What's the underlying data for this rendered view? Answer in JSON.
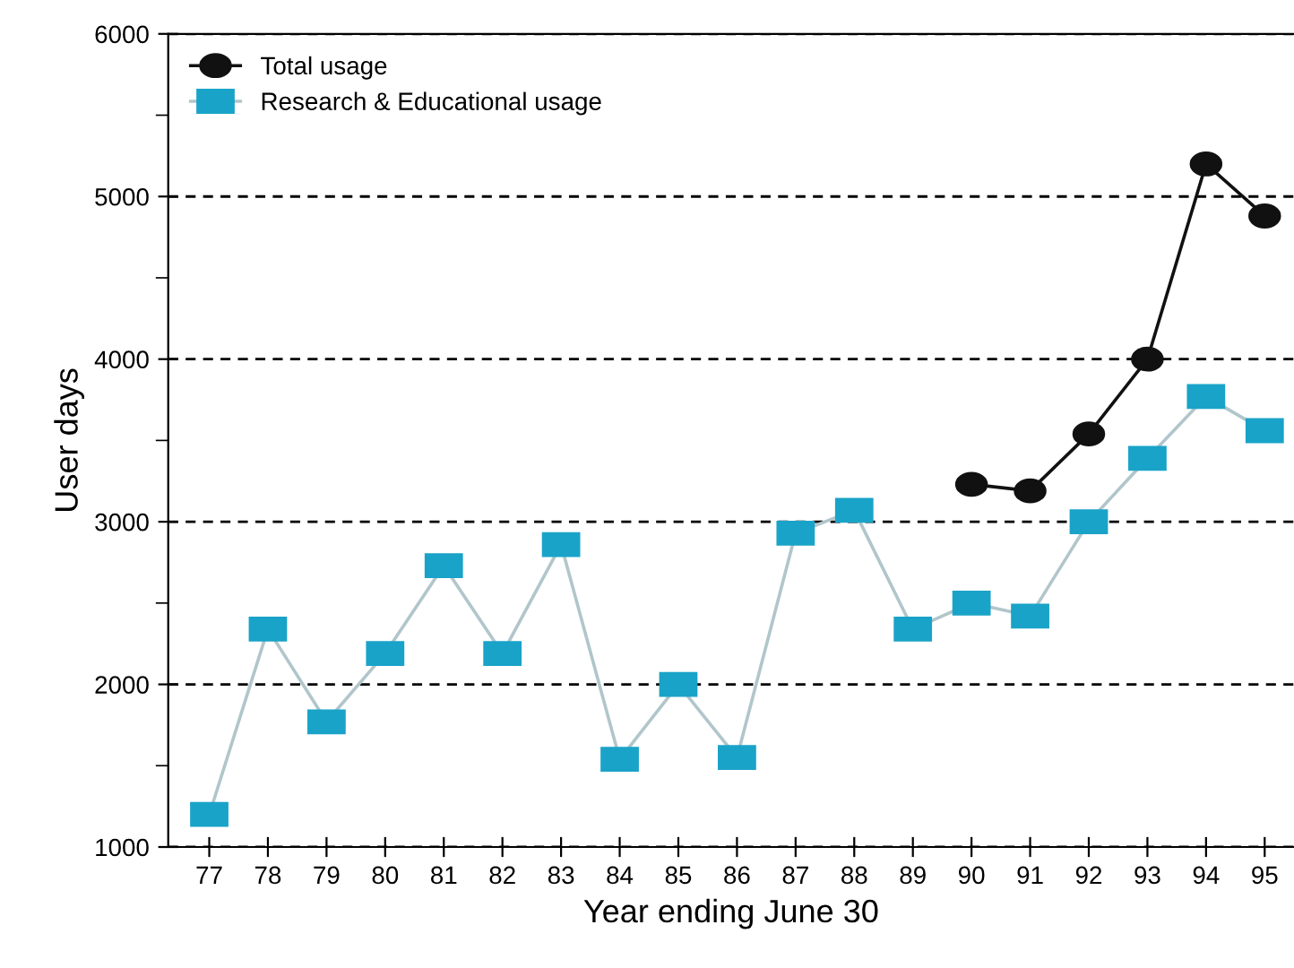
{
  "chart_data": {
    "type": "line",
    "xlabel": "Year ending June 30",
    "ylabel": "User days",
    "categories": [
      "77",
      "78",
      "79",
      "80",
      "81",
      "82",
      "83",
      "84",
      "85",
      "86",
      "87",
      "88",
      "89",
      "90",
      "91",
      "92",
      "93",
      "94",
      "95"
    ],
    "series": [
      {
        "name": "Total usage",
        "color": "#111111",
        "marker": "circle",
        "values": [
          null,
          null,
          null,
          null,
          null,
          null,
          null,
          null,
          null,
          null,
          null,
          null,
          null,
          3230,
          3190,
          3540,
          4000,
          5200,
          4880
        ]
      },
      {
        "name": "Research & Educational usage",
        "color": "#1aa3c8",
        "marker": "square",
        "values": [
          1200,
          2340,
          1770,
          2190,
          2730,
          2190,
          2860,
          1540,
          2000,
          1550,
          2930,
          3070,
          2340,
          2500,
          2420,
          3000,
          3390,
          3770,
          3560
        ]
      }
    ],
    "ylim": [
      1000,
      6000
    ],
    "yticks": [
      1000,
      2000,
      3000,
      4000,
      5000,
      6000
    ],
    "grid": "y",
    "legend": "top left"
  }
}
